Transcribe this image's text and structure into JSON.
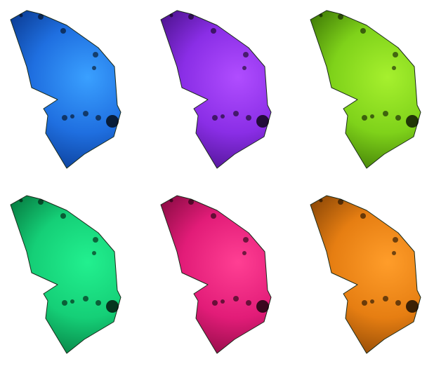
{
  "swatches": [
    {
      "id": "blue",
      "light": "#3aa0ff",
      "base": "#1f6fe0",
      "dark": "#0b3c94"
    },
    {
      "id": "purple",
      "light": "#b04dff",
      "base": "#8a2ee6",
      "dark": "#4d138f"
    },
    {
      "id": "lime",
      "light": "#a6f02e",
      "base": "#7fd21a",
      "dark": "#3f7a06"
    },
    {
      "id": "green",
      "light": "#22f08f",
      "base": "#15cf77",
      "dark": "#067a40"
    },
    {
      "id": "pink",
      "light": "#ff3f93",
      "base": "#e21c78",
      "dark": "#8a0b43"
    },
    {
      "id": "orange",
      "light": "#ff9d2a",
      "base": "#e67e12",
      "dark": "#8a4606"
    }
  ]
}
